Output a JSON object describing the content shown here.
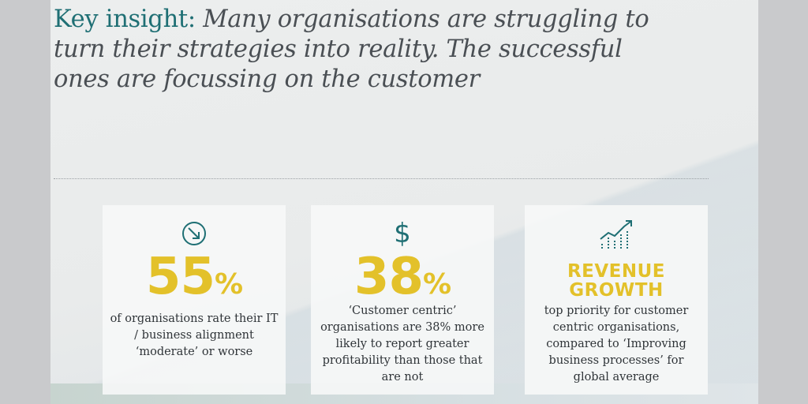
{
  "headline": {
    "lead": "Key insight:",
    "body": "Many organisations are struggling to turn their strategies into reality. The successful ones are focussing on the customer"
  },
  "cards": [
    {
      "icon": "arrow-down-right-circle-icon",
      "value": "55",
      "unit": "%",
      "description": "of organisations rate their IT / business alignment ‘moderate’ or worse"
    },
    {
      "icon": "dollar-icon",
      "icon_glyph": "$",
      "value": "38",
      "unit": "%",
      "description": "‘Customer centric’ organisations are 38% more likely to report greater profitability than those that are not"
    },
    {
      "icon": "growth-chart-icon",
      "title_line1": "REVENUE",
      "title_line2": "GROWTH",
      "description": "top priority for customer centric organisations, compared to ‘Improving business processes’ for global average"
    }
  ],
  "colors": {
    "accent_teal": "#1f6f74",
    "accent_yellow": "#e3c12a",
    "text_dark": "#2f3438"
  }
}
